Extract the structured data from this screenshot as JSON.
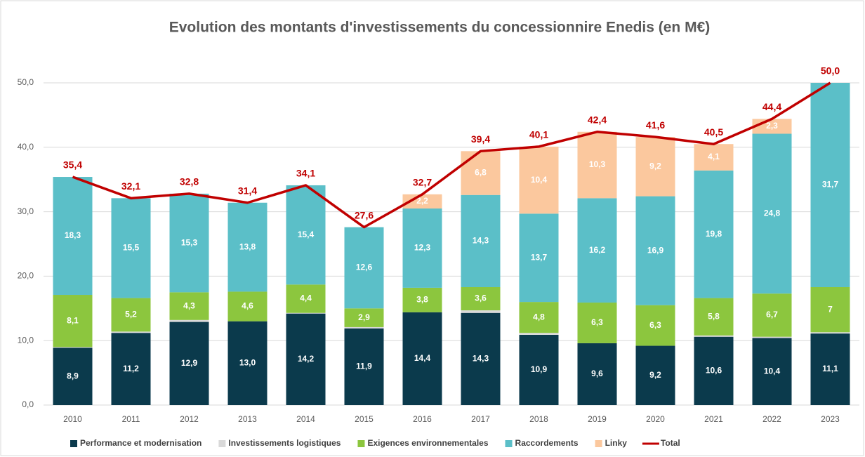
{
  "chart_data": {
    "type": "bar",
    "stacked": true,
    "title": "Evolution des montants d'investissements du concessionnire Enedis (en M€)",
    "categories": [
      "2010",
      "2011",
      "2012",
      "2013",
      "2014",
      "2015",
      "2016",
      "2017",
      "2018",
      "2019",
      "2020",
      "2021",
      "2022",
      "2023"
    ],
    "ylim": [
      0,
      50
    ],
    "yticks": [
      {
        "value": 0,
        "label": "0,0"
      },
      {
        "value": 10,
        "label": "10,0"
      },
      {
        "value": 20,
        "label": "20,0"
      },
      {
        "value": 30,
        "label": "30,0"
      },
      {
        "value": 40,
        "label": "40,0"
      },
      {
        "value": 50,
        "label": "50,0"
      }
    ],
    "grid": true,
    "legend": "bottom",
    "series": [
      {
        "name": "Performance et modernisation",
        "color": "#0b3a4c",
        "values": [
          8.9,
          11.2,
          12.9,
          13.0,
          14.2,
          11.9,
          14.4,
          14.3,
          10.9,
          9.6,
          9.2,
          10.6,
          10.4,
          11.1
        ],
        "value_labels": [
          "8,9",
          "11,2",
          "12,9",
          "13,0",
          "14,2",
          "11,9",
          "14,4",
          "14,3",
          "10,9",
          "9,6",
          "9,2",
          "10,6",
          "10,4",
          "11,1"
        ]
      },
      {
        "name": "Investissements logistiques",
        "color": "#d9d9d9",
        "values": [
          0.1,
          0.2,
          0.3,
          0,
          0.1,
          0.2,
          0,
          0.4,
          0.3,
          0,
          0,
          0.2,
          0.2,
          0.2
        ]
      },
      {
        "name": "Exigences environnementales",
        "color": "#8cc63e",
        "values": [
          8.1,
          5.2,
          4.3,
          4.6,
          4.4,
          2.9,
          3.8,
          3.6,
          4.8,
          6.3,
          6.3,
          5.8,
          6.7,
          7
        ],
        "value_labels": [
          "8,1",
          "5,2",
          "4,3",
          "4,6",
          "4,4",
          "2,9",
          "3,8",
          "3,6",
          "4,8",
          "6,3",
          "6,3",
          "5,8",
          "6,7",
          "7"
        ]
      },
      {
        "name": "Raccordements",
        "color": "#5bbfc8",
        "values": [
          18.3,
          15.5,
          15.3,
          13.8,
          15.4,
          12.6,
          12.3,
          14.3,
          13.7,
          16.2,
          16.9,
          19.8,
          24.8,
          31.7
        ],
        "value_labels": [
          "18,3",
          "15,5",
          "15,3",
          "13,8",
          "15,4",
          "12,6",
          "12,3",
          "14,3",
          "13,7",
          "16,2",
          "16,9",
          "19,8",
          "24,8",
          "31,7"
        ]
      },
      {
        "name": "Linky",
        "color": "#fbc89e",
        "values": [
          null,
          null,
          null,
          null,
          null,
          null,
          2.2,
          6.8,
          10.4,
          10.3,
          9.2,
          4.1,
          2.3,
          null
        ],
        "value_labels": [
          null,
          null,
          null,
          null,
          null,
          null,
          "2,2",
          "6,8",
          "10,4",
          "10,3",
          "9,2",
          "4,1",
          "2,3",
          null
        ]
      },
      {
        "name": "Total",
        "color": "#c00000",
        "type": "line",
        "values": [
          35.4,
          32.1,
          32.8,
          31.4,
          34.1,
          27.6,
          32.7,
          39.4,
          40.1,
          42.4,
          41.6,
          40.5,
          44.4,
          50.0
        ],
        "value_labels": [
          "35,4",
          "32,1",
          "32,8",
          "31,4",
          "34,1",
          "27,6",
          "32,7",
          "39,4",
          "40,1",
          "42,4",
          "41,6",
          "40,5",
          "44,4",
          "50,0"
        ]
      }
    ]
  }
}
